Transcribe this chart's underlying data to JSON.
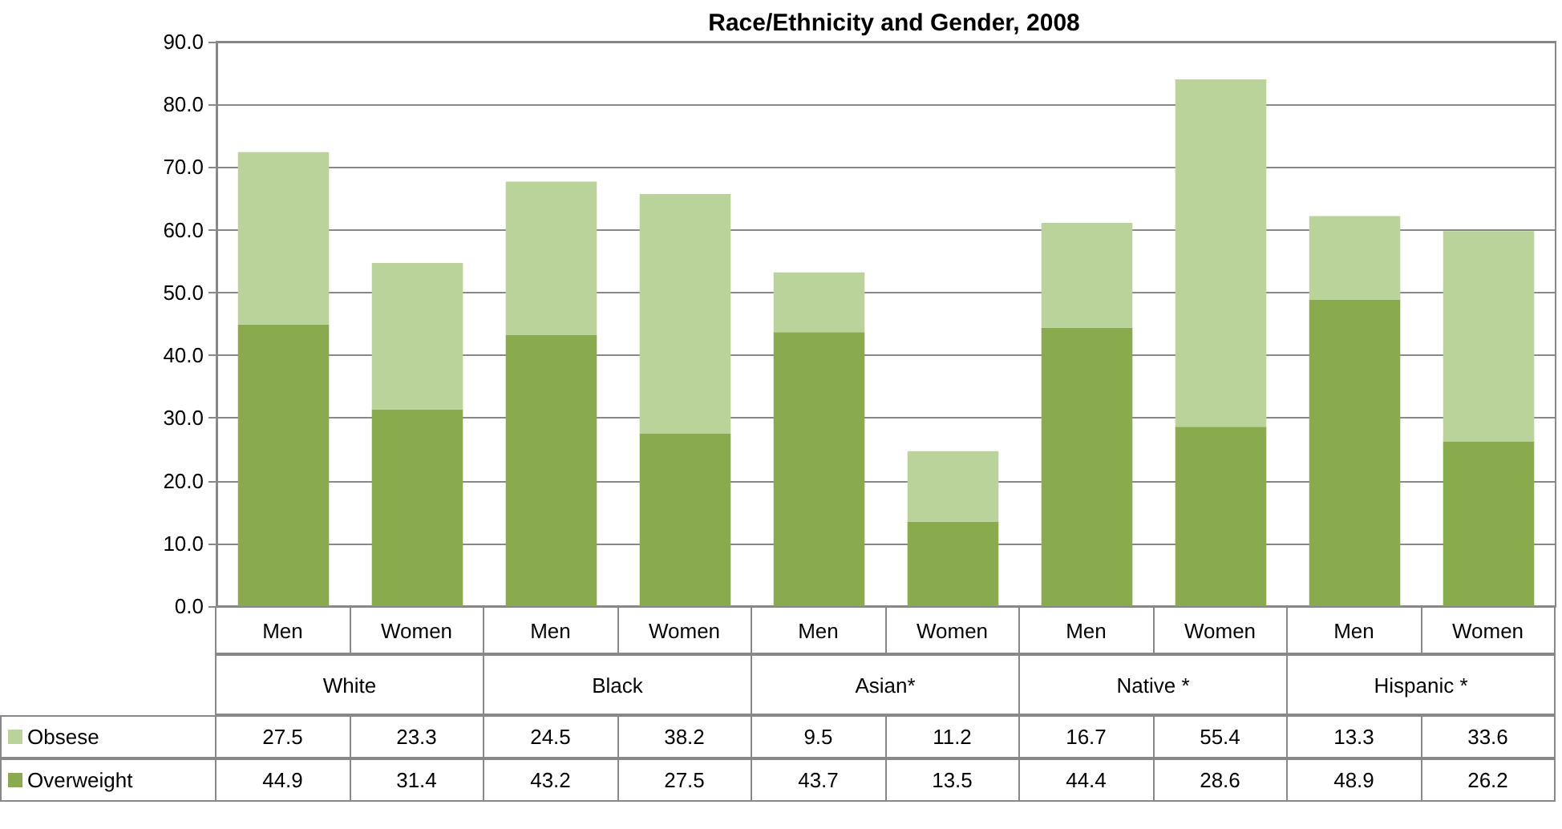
{
  "chart_data": {
    "type": "bar",
    "title": "Race/Ethnicity and Gender, 2008",
    "categories": [
      "Men",
      "Women",
      "Men",
      "Women",
      "Men",
      "Women",
      "Men",
      "Women",
      "Men",
      "Women"
    ],
    "annotations": [
      "White",
      "Black",
      "Asian*",
      "Native *",
      "Hispanic *"
    ],
    "stacked": true,
    "series": [
      {
        "name": "Overweight",
        "color": "#8aaa4e",
        "values": [
          44.9,
          31.4,
          43.2,
          27.5,
          43.7,
          13.5,
          44.4,
          28.6,
          48.9,
          26.2
        ]
      },
      {
        "name": "Obsese",
        "color": "#b9d39a",
        "values": [
          27.5,
          23.3,
          24.5,
          38.2,
          9.5,
          11.2,
          16.7,
          55.4,
          13.3,
          33.6
        ]
      }
    ],
    "ylim": [
      0,
      90
    ],
    "yticks": [
      {
        "value": 0,
        "label": "0.0"
      },
      {
        "value": 10,
        "label": "10.0"
      },
      {
        "value": 20,
        "label": "20.0"
      },
      {
        "value": 30,
        "label": "30.0"
      },
      {
        "value": 40,
        "label": "40.0"
      },
      {
        "value": 50,
        "label": "50.0"
      },
      {
        "value": 60,
        "label": "60.0"
      },
      {
        "value": 70,
        "label": "70.0"
      },
      {
        "value": 80,
        "label": "80.0"
      },
      {
        "value": 90,
        "label": "90.0"
      }
    ],
    "grid": "y",
    "legend": "bottom left",
    "data_labels": true
  }
}
